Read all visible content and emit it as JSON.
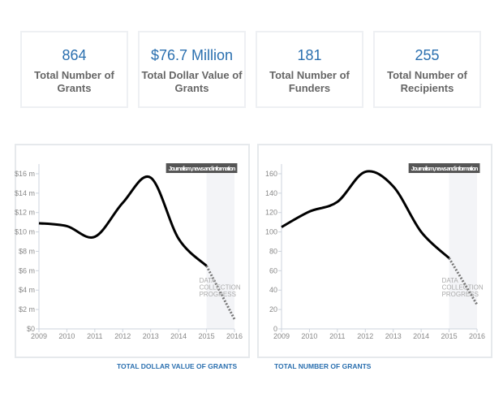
{
  "stats": [
    {
      "value": "864",
      "label": "Total Number of Grants"
    },
    {
      "value": "$76.7 Million",
      "label": "Total Dollar Value of Grants"
    },
    {
      "value": "181",
      "label": "Total Number of Funders"
    },
    {
      "value": "255",
      "label": "Total Number of Recipients"
    }
  ],
  "chart_data": [
    {
      "type": "line",
      "title": "TOTAL DOLLAR VALUE OF GRANTS",
      "legend": "Journalism, news and information",
      "shaded_label": "DATA COLLECTION PROGRESS",
      "x": [
        2009,
        2010,
        2011,
        2012,
        2013,
        2014,
        2015,
        2016
      ],
      "values": [
        10.9,
        10.6,
        9.5,
        13.0,
        15.6,
        9.3,
        6.5,
        1.0
      ],
      "projected_from": 2015,
      "yticks": [
        0,
        2,
        4,
        6,
        8,
        10,
        12,
        14,
        16
      ],
      "ytick_labels": [
        "$0",
        "$2 m",
        "$4 m",
        "$6 m",
        "$8 m",
        "$10 m",
        "$12 m",
        "$14 m",
        "$16 m"
      ],
      "ylim": [
        0,
        17
      ],
      "xlim": [
        2009,
        2016
      ],
      "line_color": "#000000",
      "projection_color": "#777777"
    },
    {
      "type": "line",
      "title": "TOTAL NUMBER OF GRANTS",
      "legend": "Journalism, news and information",
      "shaded_label": "DATA COLLECTION PROGRESS",
      "x": [
        2009,
        2010,
        2011,
        2012,
        2013,
        2014,
        2015,
        2016
      ],
      "values": [
        105,
        121,
        131,
        162,
        147,
        100,
        73,
        25
      ],
      "projected_from": 2015,
      "yticks": [
        0,
        20,
        40,
        60,
        80,
        100,
        120,
        140,
        160
      ],
      "ytick_labels": [
        "0",
        "20",
        "40",
        "60",
        "80",
        "100",
        "120",
        "140",
        "160"
      ],
      "ylim": [
        0,
        170
      ],
      "xlim": [
        2009,
        2016
      ],
      "line_color": "#000000",
      "projection_color": "#777777"
    }
  ]
}
